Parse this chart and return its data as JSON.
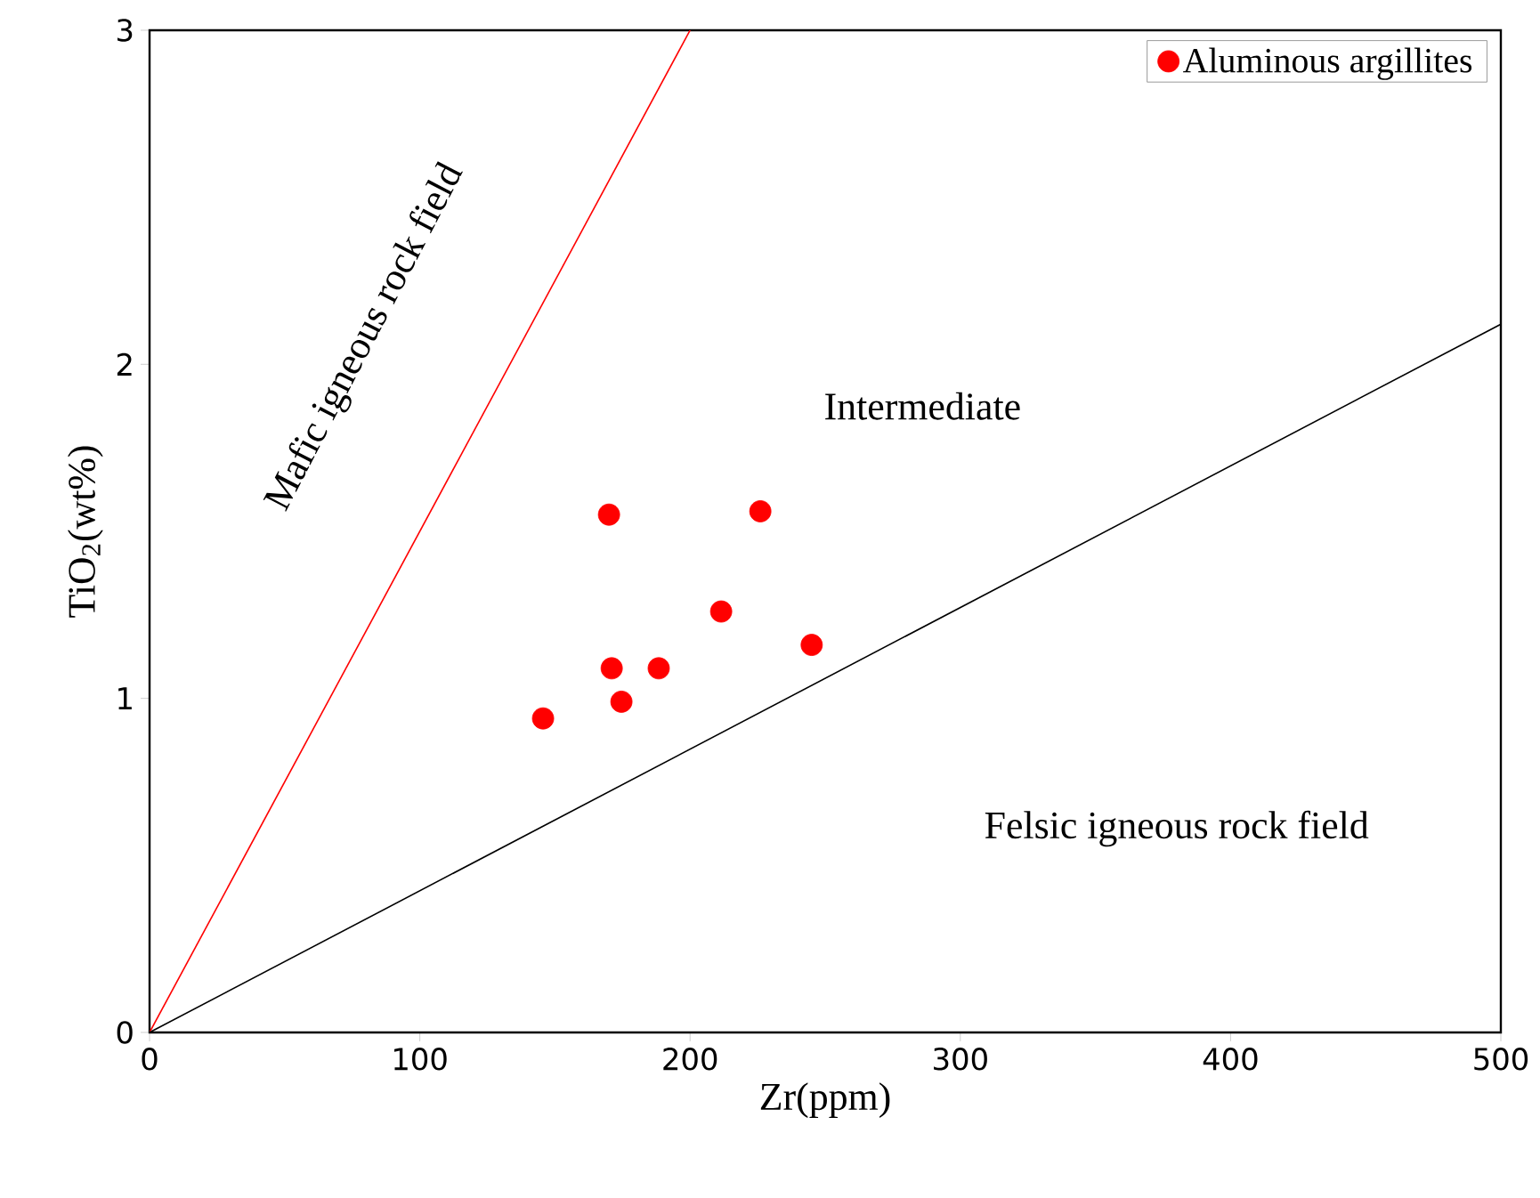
{
  "chart_data": {
    "type": "scatter",
    "xlabel": "Zr(ppm)",
    "ylabel": "TiO$_{2}$(wt%)",
    "xlim": [
      0,
      500
    ],
    "ylim": [
      0,
      3
    ],
    "xticks": [
      0,
      100,
      200,
      300,
      400,
      500
    ],
    "yticks": [
      0,
      1,
      2,
      3
    ],
    "grid": false,
    "legend": "top right",
    "series": [
      {
        "name": "Aluminous argillites",
        "color": "#ff0000",
        "marker": "circle",
        "x": [
          145.6,
          170,
          171,
          174.6,
          188.4,
          211.5,
          226,
          245
        ],
        "values": [
          0.94,
          1.55,
          1.09,
          0.99,
          1.09,
          1.26,
          1.56,
          1.16
        ]
      },
      {
        "type": "line",
        "marker": "none",
        "color": "#ff0000",
        "x": [
          0,
          200
        ],
        "values": [
          0,
          3
        ]
      },
      {
        "type": "line",
        "marker": "none",
        "color": "#000000",
        "x": [
          0,
          500
        ],
        "values": [
          0,
          2.12
        ]
      }
    ],
    "annotations": [
      "Mafic igneous rock field",
      "Intermediate",
      "Felsic igneous rock field"
    ]
  }
}
